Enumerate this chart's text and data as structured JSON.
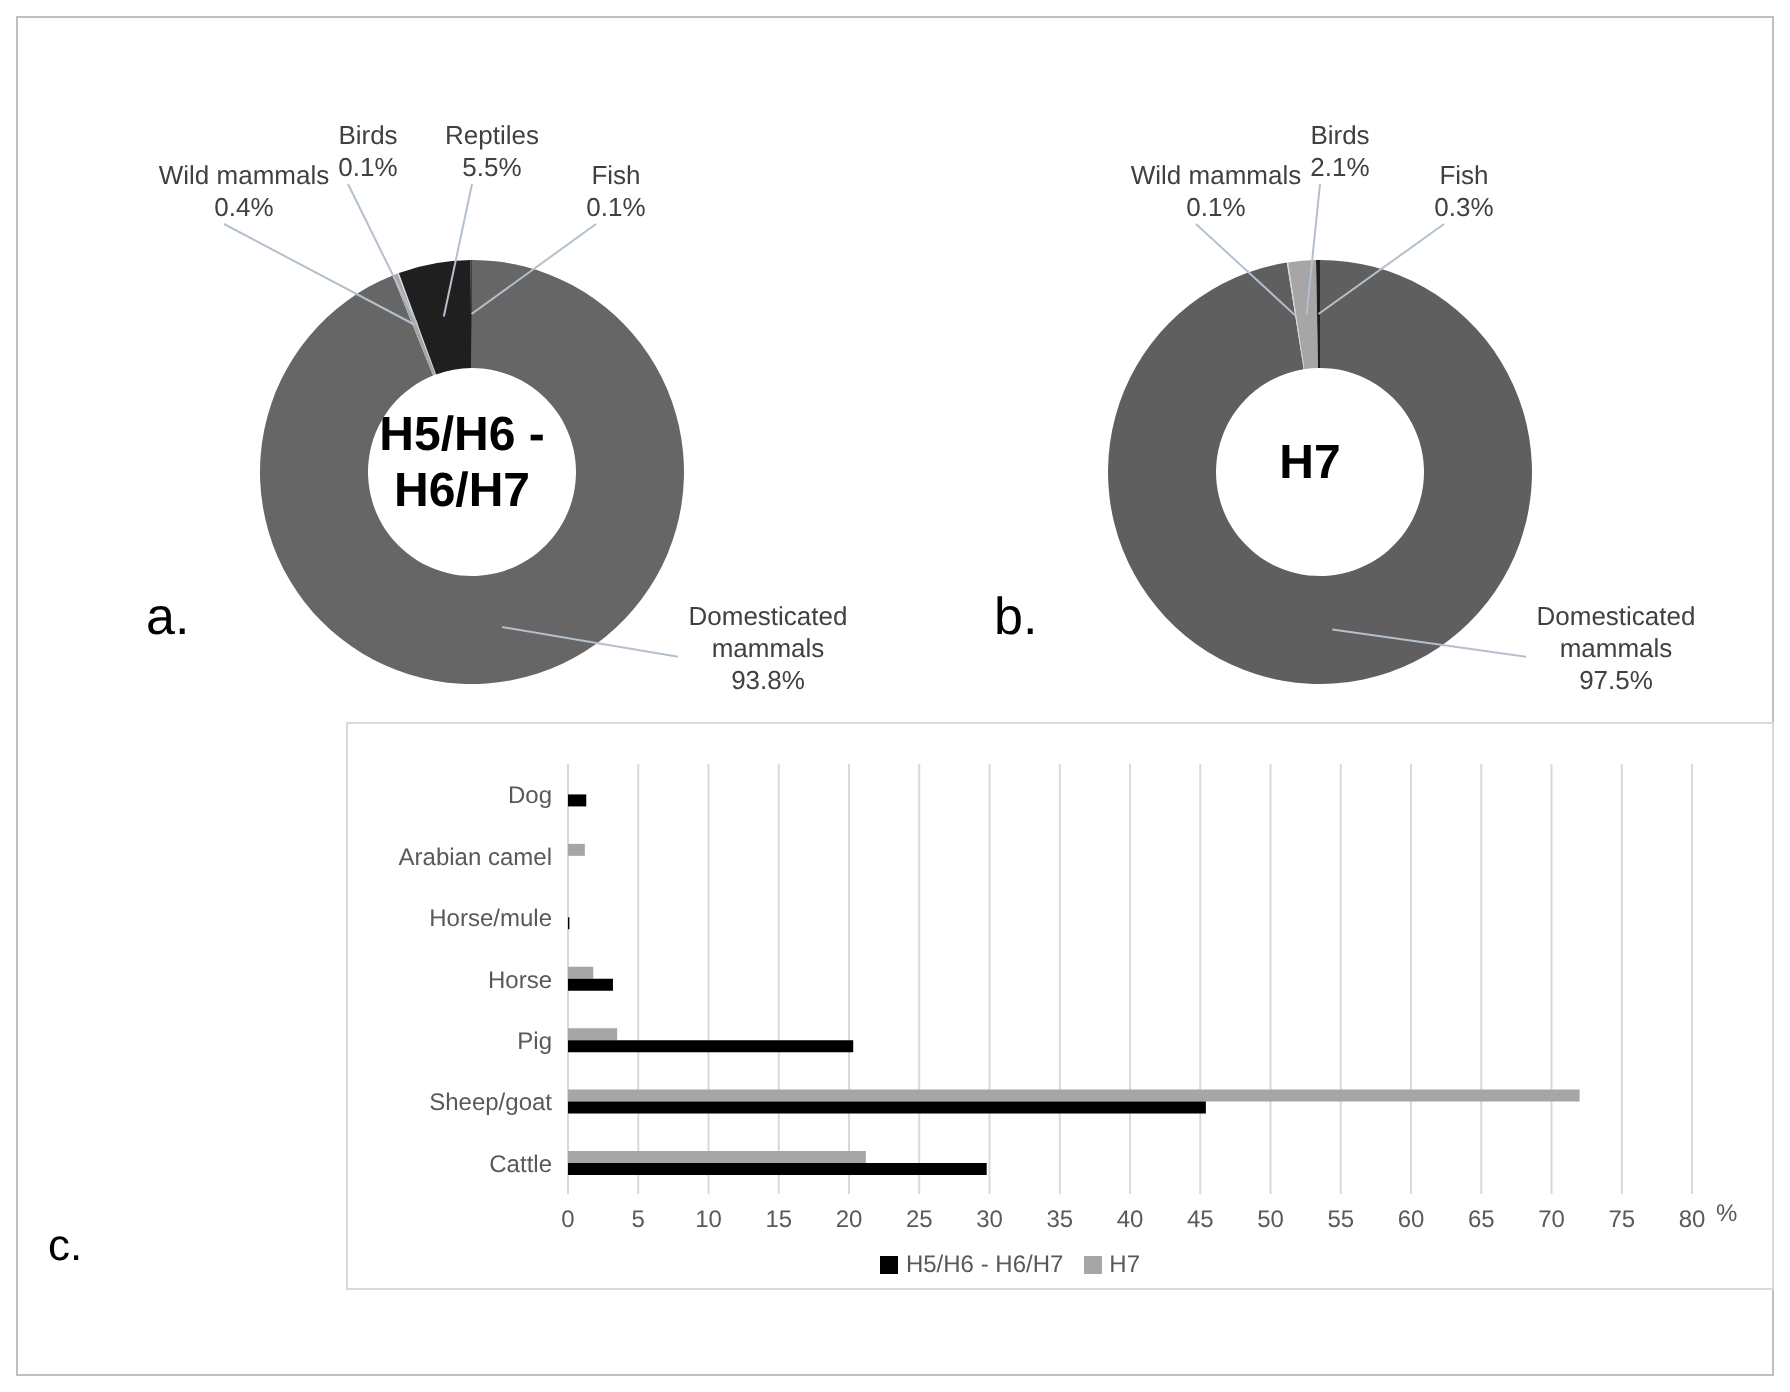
{
  "chart_data": [
    {
      "type": "donut",
      "title": "H5/H6 - H6/H7",
      "categories": [
        "Domesticated mammals",
        "Wild mammals",
        "Birds",
        "Reptiles",
        "Fish"
      ],
      "values": [
        93.8,
        0.4,
        0.1,
        5.5,
        0.1
      ],
      "value_labels": [
        "93.8%",
        "0.4%",
        "0.1%",
        "5.5%",
        "0.1%"
      ],
      "colors": [
        "#666666",
        "#a6a6a6",
        "#d9d9d9",
        "#1f1f1f",
        "#404040"
      ],
      "annotations": [
        "a."
      ]
    },
    {
      "type": "donut",
      "title": "H7",
      "categories": [
        "Domesticated mammals",
        "Wild mammals",
        "Birds",
        "Fish"
      ],
      "values": [
        97.5,
        0.1,
        2.1,
        0.3
      ],
      "value_labels": [
        "97.5%",
        "0.1%",
        "2.1%",
        "0.3%"
      ],
      "colors": [
        "#5f5f5f",
        "#d9d9d9",
        "#a6a6a6",
        "#1f1f1f"
      ],
      "annotations": [
        "b."
      ]
    },
    {
      "type": "bar",
      "orientation": "horizontal",
      "categories": [
        "Dog",
        "Arabian camel",
        "Horse/mule",
        "Horse",
        "Pig",
        "Sheep/goat",
        "Cattle"
      ],
      "series": [
        {
          "name": "H7",
          "color": "#a6a6a6",
          "values": [
            null,
            1.2,
            null,
            1.8,
            3.5,
            72,
            21.2
          ]
        },
        {
          "name": "H5/H6 - H6/H7",
          "color": "#000000",
          "values": [
            1.3,
            null,
            0.1,
            3.2,
            20.3,
            45.4,
            29.8
          ]
        }
      ],
      "xlabel": "%",
      "xlim": [
        0,
        80
      ],
      "xticks": [
        0,
        5,
        10,
        15,
        20,
        25,
        30,
        35,
        40,
        45,
        50,
        55,
        60,
        65,
        70,
        75,
        80
      ],
      "grid": "x",
      "legend": "bottom",
      "annotations": [
        "c."
      ]
    }
  ]
}
